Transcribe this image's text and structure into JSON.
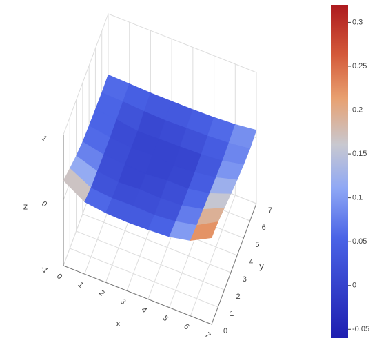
{
  "chart_data": {
    "type": "surface",
    "x": [
      0,
      1,
      2,
      3,
      4,
      5,
      6,
      7
    ],
    "y": [
      0,
      1,
      2,
      3,
      4,
      5,
      6,
      7
    ],
    "z": [
      [
        0.3,
        0.1,
        0.06,
        0.05,
        0.06,
        0.08,
        0.15,
        0.32
      ],
      [
        0.22,
        0.05,
        0.02,
        0.03,
        0.02,
        0.05,
        0.12,
        0.3
      ],
      [
        0.15,
        0.04,
        0.0,
        0.02,
        0.01,
        0.03,
        0.1,
        0.25
      ],
      [
        0.1,
        0.03,
        0.01,
        -0.01,
        0.02,
        0.02,
        0.08,
        0.2
      ],
      [
        0.08,
        0.03,
        0.0,
        0.02,
        -0.02,
        0.01,
        0.06,
        0.15
      ],
      [
        0.07,
        0.04,
        -0.01,
        0.0,
        0.01,
        0.02,
        0.05,
        0.12
      ],
      [
        0.06,
        0.05,
        0.03,
        0.02,
        0.03,
        0.04,
        0.06,
        0.1
      ],
      [
        0.07,
        0.06,
        0.05,
        0.05,
        0.05,
        0.06,
        0.08,
        0.12
      ]
    ],
    "xlim": [
      0,
      7
    ],
    "ylim": [
      0,
      7
    ],
    "zlim": [
      -1,
      1
    ],
    "xticks": [
      0,
      1,
      2,
      3,
      4,
      5,
      6,
      7
    ],
    "yticks": [
      0,
      1,
      2,
      3,
      4,
      5,
      6,
      7
    ],
    "zticks": [
      -1,
      0,
      1
    ],
    "xlabel": "x",
    "ylabel": "y",
    "zlabel": "z",
    "clim": [
      -0.06,
      0.32
    ],
    "colorbar_ticks": [
      -0.05,
      0,
      0.05,
      0.1,
      0.15,
      0.2,
      0.25,
      0.3
    ],
    "colorscale": [
      [
        0,
        "#1e1eb0"
      ],
      [
        0.3,
        "#4a63e6"
      ],
      [
        0.45,
        "#8fa8f5"
      ],
      [
        0.58,
        "#c8c8d0"
      ],
      [
        0.72,
        "#e8a070"
      ],
      [
        0.85,
        "#d45a3a"
      ],
      [
        1,
        "#ad1a1e"
      ]
    ],
    "grid": true
  }
}
